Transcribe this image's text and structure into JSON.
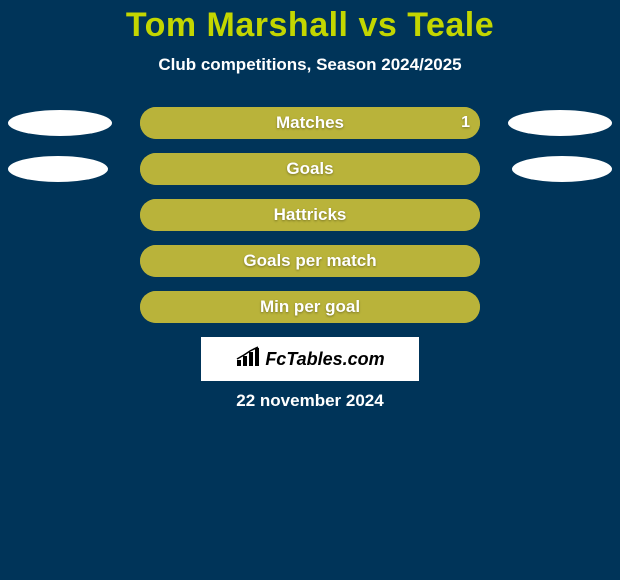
{
  "title": "Tom Marshall vs Teale",
  "subtitle": "Club competitions, Season 2024/2025",
  "date": "22 november 2024",
  "logo_text": "FcTables.com",
  "colors": {
    "page_bg": "#003459",
    "title_color": "#c3d600",
    "subtitle_color": "#ffffff",
    "date_color": "#ffffff",
    "bar_track_bg": "#a8a02f",
    "bar_fill_left": "#b9b33a",
    "bar_fill_right": "#b9b33a",
    "bar_label_color": "#ffffff",
    "value_color": "#ffffff",
    "ellipse_color": "#ffffff",
    "logo_bg": "#ffffff"
  },
  "ellipses": {
    "row0_left_width": 104,
    "row0_right_width": 104,
    "row1_left_width": 100,
    "row1_right_width": 100
  },
  "rows": [
    {
      "label": "Matches",
      "left_value": "",
      "right_value": "1",
      "left_pct": 0,
      "right_pct": 100,
      "show_left_ellipse": true,
      "show_right_ellipse": true
    },
    {
      "label": "Goals",
      "left_value": "",
      "right_value": "",
      "left_pct": 50,
      "right_pct": 50,
      "show_left_ellipse": true,
      "show_right_ellipse": true
    },
    {
      "label": "Hattricks",
      "left_value": "",
      "right_value": "",
      "left_pct": 50,
      "right_pct": 50,
      "show_left_ellipse": false,
      "show_right_ellipse": false
    },
    {
      "label": "Goals per match",
      "left_value": "",
      "right_value": "",
      "left_pct": 50,
      "right_pct": 50,
      "show_left_ellipse": false,
      "show_right_ellipse": false
    },
    {
      "label": "Min per goal",
      "left_value": "",
      "right_value": "",
      "left_pct": 50,
      "right_pct": 50,
      "show_left_ellipse": false,
      "show_right_ellipse": false
    }
  ]
}
